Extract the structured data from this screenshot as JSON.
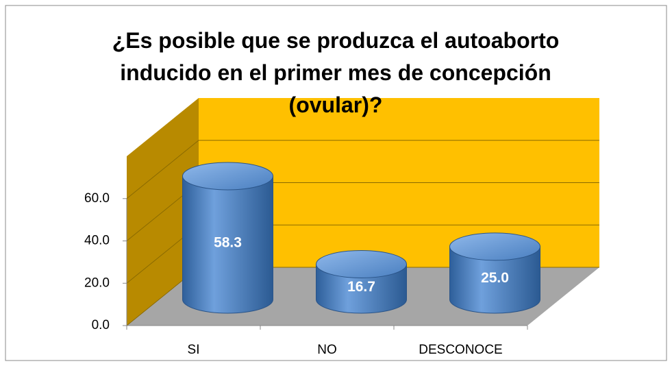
{
  "chart_data": {
    "type": "bar3d",
    "title": "¿Es posible que se produzca el autoaborto inducido en el primer mes de concepción (ovular)?",
    "categories": [
      "SI",
      "NO",
      "DESCONOCE"
    ],
    "values": [
      58.3,
      16.7,
      25.0
    ],
    "value_labels": [
      "58.3",
      "16.7",
      "25.0"
    ],
    "color": "#4f81bd",
    "wall_color": "#ffc000",
    "floor_color": "#a6a6a6",
    "ylim": [
      0,
      80
    ],
    "yticks": [
      {
        "value": 0,
        "label": "0.0"
      },
      {
        "value": 20,
        "label": "20.0"
      },
      {
        "value": 40,
        "label": "40.0"
      },
      {
        "value": 60,
        "label": "60.0"
      }
    ],
    "grid": true
  }
}
